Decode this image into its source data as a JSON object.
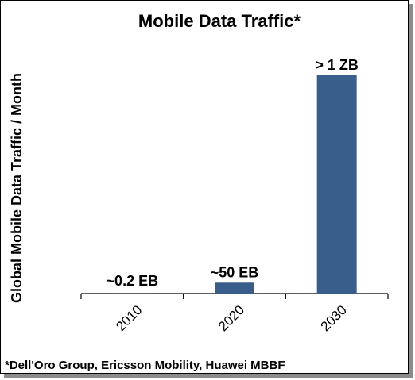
{
  "chart_data": {
    "type": "bar",
    "title": "Mobile Data Traffic*",
    "xlabel": "",
    "ylabel": "Global Mobile Data Traffic / Month",
    "categories": [
      "2010",
      "2020",
      "2030"
    ],
    "values": [
      0.2,
      50,
      1000
    ],
    "unit": "EB",
    "data_labels": [
      "~0.2 EB",
      "~50 EB",
      "> 1 ZB"
    ],
    "ylim": [
      0,
      1000
    ],
    "bar_color": "#3a5e8c",
    "grid": false,
    "legend": "none",
    "footnote": "*Dell'Oro Group, Ericsson Mobility, Huawei MBBF"
  }
}
